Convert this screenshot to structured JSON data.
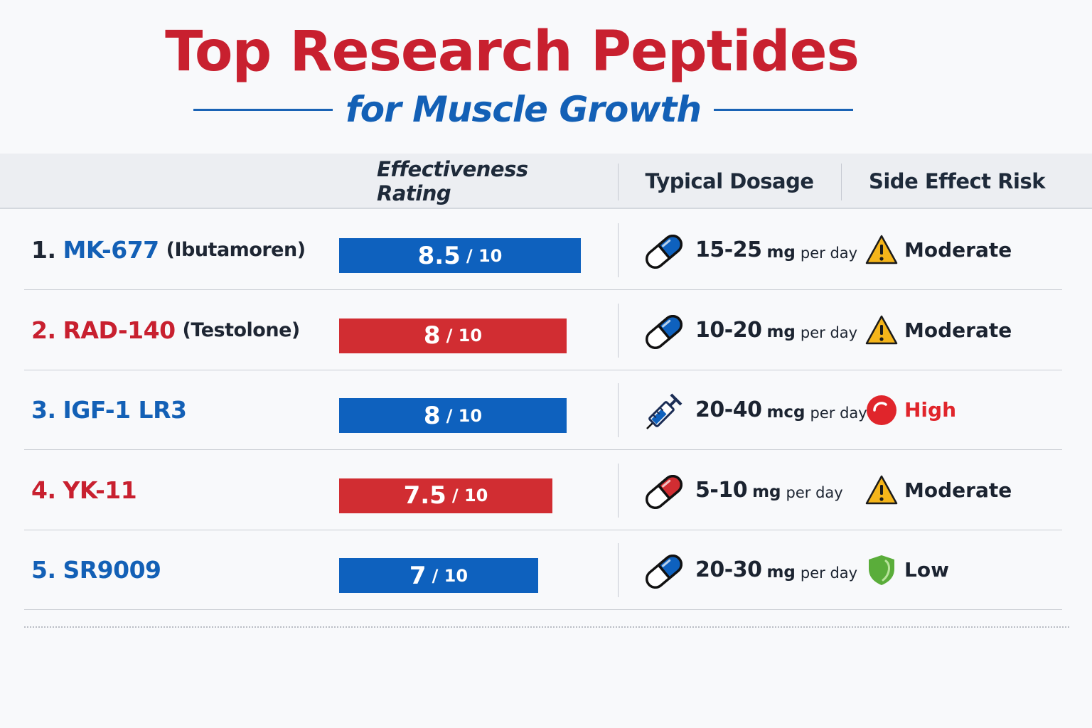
{
  "title": "Top Research Peptides",
  "subtitle": "for Muscle Growth",
  "colors": {
    "red": "#c8202f",
    "blue": "#1360b6",
    "bar_blue": "#0e61be",
    "bar_red": "#d12d32",
    "warning_yellow": "#f5b51a",
    "high_red": "#e0252b",
    "low_green": "#5aad3a"
  },
  "columns": {
    "effectiveness": "Effectiveness Rating",
    "dosage": "Typical Dosage",
    "side_effects": "Side Effect Risk"
  },
  "rows": [
    {
      "num": "1.",
      "name": "MK-677",
      "sub": "(Ibutamoren)",
      "color": "blue",
      "rating": 8.5,
      "rating_text": "8.5",
      "denom": "/ 10",
      "bar_color": "blue",
      "dose_icon": "pill-blue-icon",
      "dose_value": "15-25",
      "dose_unit": "mg",
      "dose_per": "per day",
      "risk_icon": "warning-icon",
      "risk": "Moderate",
      "risk_color": "dark"
    },
    {
      "num": "2.",
      "name": "RAD-140",
      "sub": "(Testolone)",
      "color": "red",
      "rating": 8,
      "rating_text": "8",
      "denom": "/ 10",
      "bar_color": "red",
      "dose_icon": "pill-blue-icon",
      "dose_value": "10-20",
      "dose_unit": "mg",
      "dose_per": "per day",
      "risk_icon": "warning-icon",
      "risk": "Moderate",
      "risk_color": "dark"
    },
    {
      "num": "3.",
      "name": "IGF-1 LR3",
      "sub": "",
      "color": "blue",
      "rating": 8,
      "rating_text": "8",
      "denom": "/ 10",
      "bar_color": "blue",
      "dose_icon": "syringe-icon",
      "dose_value": "20-40",
      "dose_unit": "mcg",
      "dose_per": "per day",
      "risk_icon": "high-risk-circle-icon",
      "risk": "High",
      "risk_color": "red"
    },
    {
      "num": "4.",
      "name": "YK-11",
      "sub": "",
      "color": "red",
      "rating": 7.5,
      "rating_text": "7.5",
      "denom": "/ 10",
      "bar_color": "red",
      "dose_icon": "pill-red-icon",
      "dose_value": "5-10",
      "dose_unit": "mg",
      "dose_per": "per day",
      "risk_icon": "warning-icon",
      "risk": "Moderate",
      "risk_color": "dark"
    },
    {
      "num": "5.",
      "name": "SR9009",
      "sub": "",
      "color": "blue",
      "rating": 7,
      "rating_text": "7",
      "denom": "/ 10",
      "bar_color": "blue",
      "dose_icon": "pill-blue-icon",
      "dose_value": "20-30",
      "dose_unit": "mg",
      "dose_per": "per day",
      "risk_icon": "shield-icon",
      "risk": "Low",
      "risk_color": "dark"
    }
  ]
}
